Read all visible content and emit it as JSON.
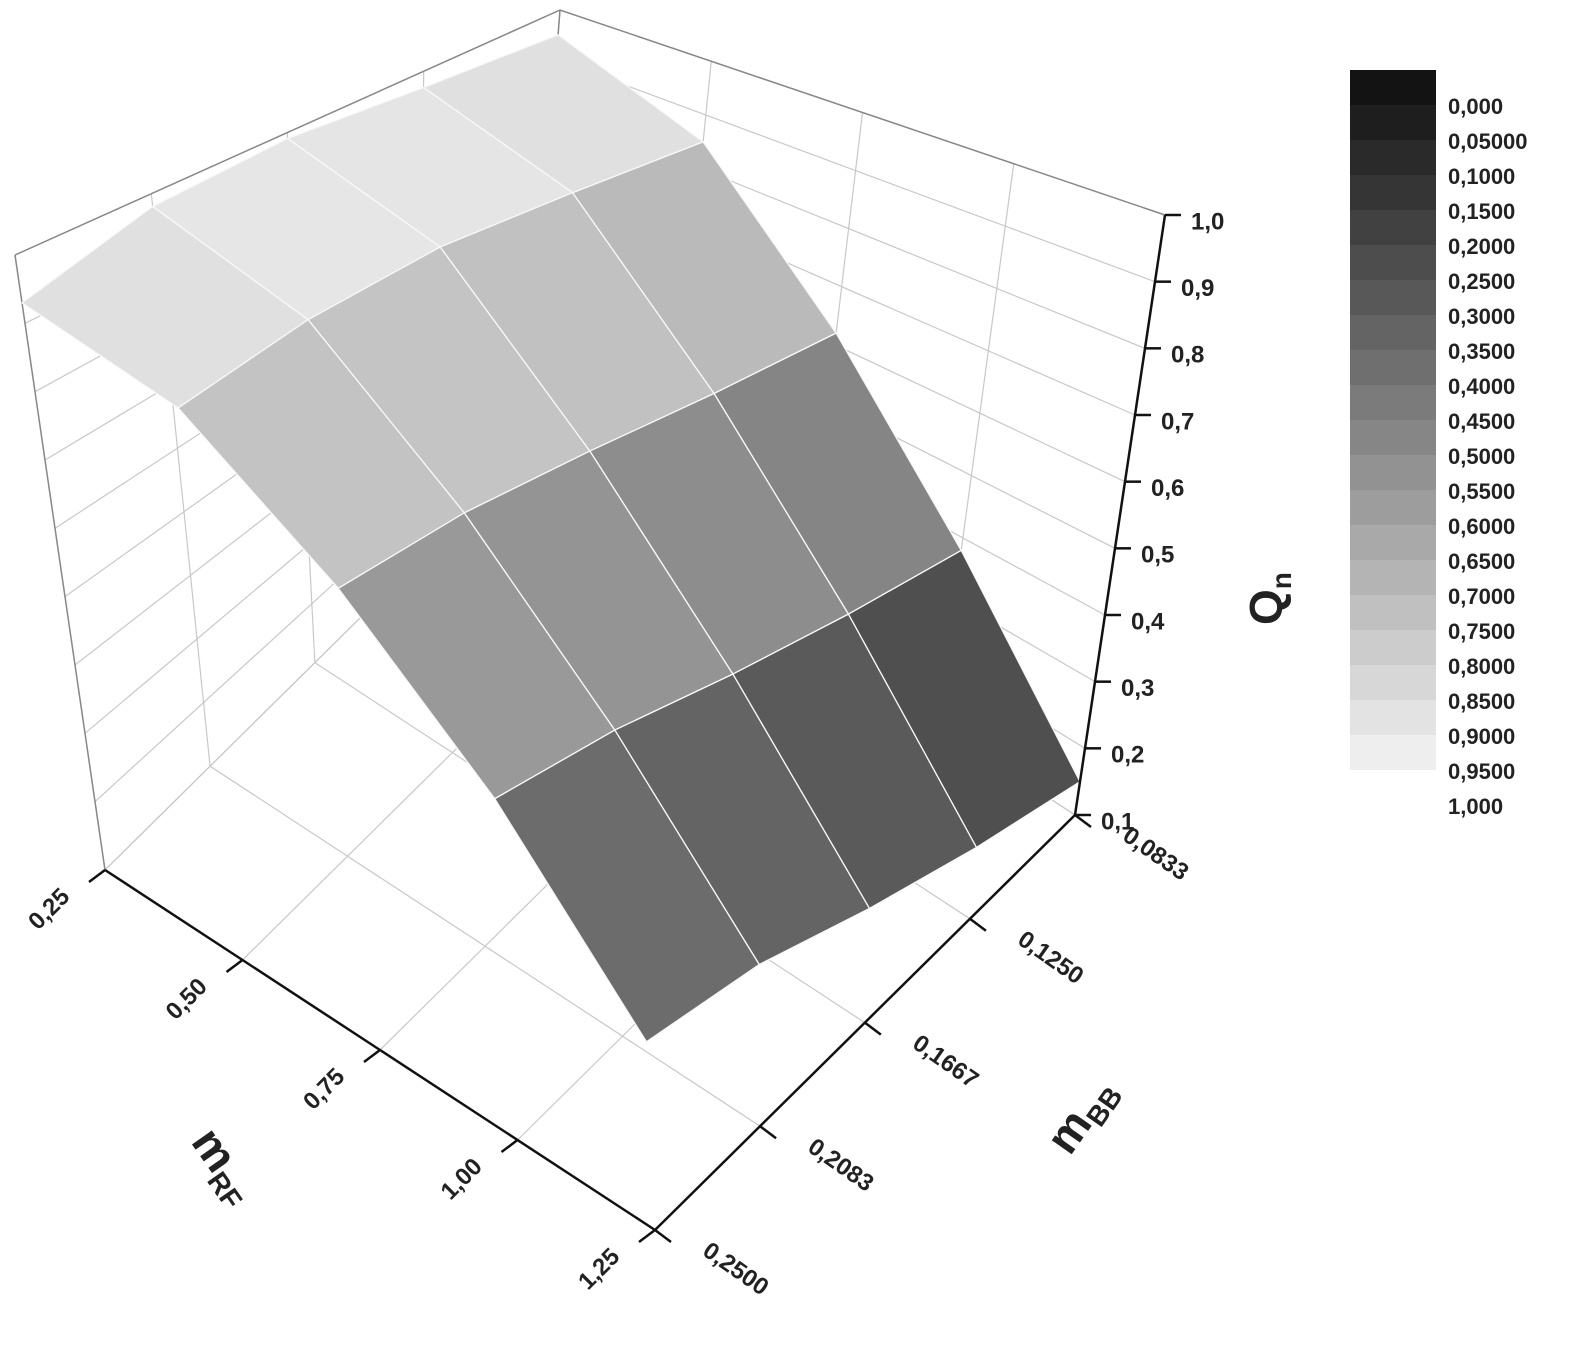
{
  "chart_data": {
    "type": "surface3d",
    "x_label": "m",
    "x_label_subscript": "RF",
    "y_label": "m",
    "y_label_subscript": "BB",
    "z_label": "Q",
    "z_label_subscript": "n",
    "x": [
      0.25,
      0.5,
      0.75,
      1.0,
      1.25
    ],
    "y": [
      0.0833,
      0.125,
      0.1667,
      0.2083,
      0.25
    ],
    "z": [
      [
        0.95,
        0.97,
        0.99,
        0.98,
        0.93
      ],
      [
        0.85,
        0.88,
        0.9,
        0.89,
        0.86
      ],
      [
        0.62,
        0.65,
        0.68,
        0.7,
        0.7
      ],
      [
        0.38,
        0.42,
        0.46,
        0.5,
        0.52
      ],
      [
        0.15,
        0.2,
        0.25,
        0.3,
        0.32
      ]
    ],
    "xlim": [
      0.25,
      1.25
    ],
    "ylim": [
      0.0833,
      0.25
    ],
    "zlim": [
      0.1,
      1.0
    ],
    "xticks": [
      {
        "value": 0.25,
        "label": "0,25"
      },
      {
        "value": 0.5,
        "label": "0,50"
      },
      {
        "value": 0.75,
        "label": "0,75"
      },
      {
        "value": 1.0,
        "label": "1,00"
      },
      {
        "value": 1.25,
        "label": "1,25"
      }
    ],
    "yticks": [
      {
        "value": 0.0833,
        "label": "0,0833"
      },
      {
        "value": 0.125,
        "label": "0,1250"
      },
      {
        "value": 0.1667,
        "label": "0,1667"
      },
      {
        "value": 0.2083,
        "label": "0,2083"
      },
      {
        "value": 0.25,
        "label": "0,2500"
      }
    ],
    "zticks": [
      {
        "value": 0.1,
        "label": "0,1"
      },
      {
        "value": 0.2,
        "label": "0,2"
      },
      {
        "value": 0.3,
        "label": "0,3"
      },
      {
        "value": 0.4,
        "label": "0,4"
      },
      {
        "value": 0.5,
        "label": "0,5"
      },
      {
        "value": 0.6,
        "label": "0,6"
      },
      {
        "value": 0.7,
        "label": "0,7"
      },
      {
        "value": 0.8,
        "label": "0,8"
      },
      {
        "value": 0.9,
        "label": "0,9"
      },
      {
        "value": 1.0,
        "label": "1,0"
      }
    ],
    "colormap": [
      "#0d0d0d",
      "#f4f4f4"
    ],
    "color_levels": [
      {
        "value": 0,
        "label": "0,000"
      },
      {
        "value": 0.05,
        "label": "0,05000"
      },
      {
        "value": 0.1,
        "label": "0,1000"
      },
      {
        "value": 0.15,
        "label": "0,1500"
      },
      {
        "value": 0.2,
        "label": "0,2000"
      },
      {
        "value": 0.25,
        "label": "0,2500"
      },
      {
        "value": 0.3,
        "label": "0,3000"
      },
      {
        "value": 0.35,
        "label": "0,3500"
      },
      {
        "value": 0.4,
        "label": "0,4000"
      },
      {
        "value": 0.45,
        "label": "0,4500"
      },
      {
        "value": 0.5,
        "label": "0,5000"
      },
      {
        "value": 0.55,
        "label": "0,5500"
      },
      {
        "value": 0.6,
        "label": "0,6000"
      },
      {
        "value": 0.65,
        "label": "0,6500"
      },
      {
        "value": 0.7,
        "label": "0,7000"
      },
      {
        "value": 0.75,
        "label": "0,7500"
      },
      {
        "value": 0.8,
        "label": "0,8000"
      },
      {
        "value": 0.85,
        "label": "0,8500"
      },
      {
        "value": 0.9,
        "label": "0,9000"
      },
      {
        "value": 0.95,
        "label": "0,9500"
      },
      {
        "value": 1.0,
        "label": "1,000"
      }
    ]
  }
}
